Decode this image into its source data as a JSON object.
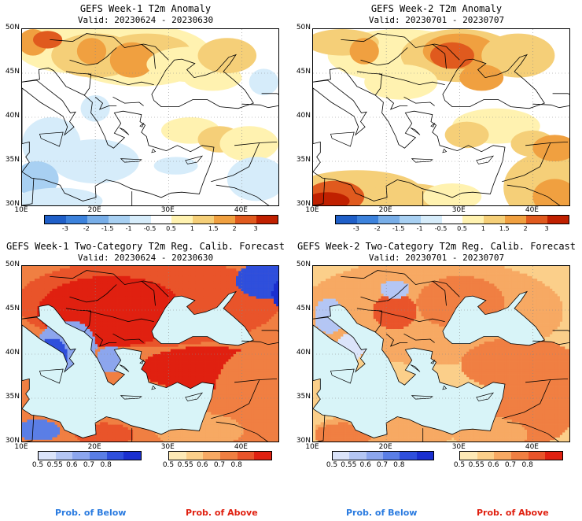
{
  "panels": [
    {
      "title": "GEFS Week-1 T2m Anomaly",
      "valid": "Valid: 20230624 - 20230630",
      "kind": "anomaly",
      "yticks": [
        "50N",
        "45N",
        "40N",
        "35N",
        "30N"
      ],
      "xticks": [
        "10E",
        "20E",
        "30E",
        "40E"
      ]
    },
    {
      "title": "GEFS Week-2 T2m Anomaly",
      "valid": "Valid: 20230701 - 20230707",
      "kind": "anomaly",
      "yticks": [
        "50N",
        "45N",
        "40N",
        "35N",
        "30N"
      ],
      "xticks": [
        "10E",
        "20E",
        "30E",
        "40E"
      ]
    },
    {
      "title": "GEFS Week-1 Two-Category T2m Reg. Calib. Forecast",
      "valid": "Valid: 20230624 - 20230630",
      "kind": "prob",
      "yticks": [
        "50N",
        "45N",
        "40N",
        "35N",
        "30N"
      ],
      "xticks": [
        "10E",
        "20E",
        "30E",
        "40E"
      ]
    },
    {
      "title": "GEFS Week-2 Two-Category T2m Reg. Calib. Forecast",
      "valid": "Valid: 20230701 - 20230707",
      "kind": "prob",
      "yticks": [
        "50N",
        "45N",
        "40N",
        "35N",
        "30N"
      ],
      "xticks": [
        "10E",
        "20E",
        "30E",
        "40E"
      ]
    }
  ],
  "anomaly_colorbar": {
    "labels": [
      "-3",
      "-2",
      "-1.5",
      "-1",
      "-0.5",
      "0.5",
      "1",
      "1.5",
      "2",
      "3"
    ],
    "colors": [
      "#1f5fc8",
      "#3c82dc",
      "#78aee8",
      "#a8d0f2",
      "#d6ecfa",
      "#ffffff",
      "#fff2b0",
      "#f5cf78",
      "#f0a040",
      "#e05a1e",
      "#c02000"
    ]
  },
  "prob_colorbar": {
    "below_labels": [
      "0.5",
      "0.55",
      "0.6",
      "0.7",
      "0.8"
    ],
    "below_colors": [
      "#dbe4fa",
      "#b4c6f4",
      "#8ca6ee",
      "#5a7ee6",
      "#2f4fdc",
      "#1a2fd0"
    ],
    "above_labels": [
      "0.5",
      "0.55",
      "0.6",
      "0.7",
      "0.8"
    ],
    "above_colors": [
      "#fde9b6",
      "#fbcf8a",
      "#f7a963",
      "#f07f42",
      "#e9542a",
      "#e02010"
    ],
    "below_text": "Prob. of Below",
    "above_text": "Prob. of Above",
    "below_text_color": "#2a7be0",
    "above_text_color": "#e02010"
  },
  "chart_data": [
    {
      "type": "heatmap",
      "title": "GEFS Week-1 T2m Anomaly",
      "valid": "20230624 - 20230630",
      "x_range": [
        10,
        45
      ],
      "y_range": [
        30,
        50
      ],
      "x_unit": "E",
      "y_unit": "N",
      "summary": "Warm anomalies (+0.5 to +2) over central/eastern Europe, Balkans and Carpathians; near-zero over Mediterranean; weak cold (-0.5 to -1) over Libya, Greece, Anatolia patches."
    },
    {
      "type": "heatmap",
      "title": "GEFS Week-2 T2m Anomaly",
      "valid": "20230701 - 20230707",
      "x_range": [
        10,
        45
      ],
      "y_range": [
        30,
        50
      ],
      "x_unit": "E",
      "y_unit": "N",
      "summary": "Strong warm anomalies (+1.5 to +3) over Romania/Ukraine, Libya/Egypt and Middle East; moderate warmth over Balkans and Turkey."
    },
    {
      "type": "heatmap",
      "title": "GEFS Week-1 Two-Category T2m Reg. Calib. Forecast",
      "valid": "20230624 - 20230630",
      "x_range": [
        10,
        45
      ],
      "y_range": [
        30,
        50
      ],
      "x_unit": "E",
      "y_unit": "N",
      "summary": "Probability of above (>0.8) over central/eastern Europe, Balkans and Turkey; probability of below over Italy, NE Russia corner and coastal Libya."
    },
    {
      "type": "heatmap",
      "title": "GEFS Week-2 Two-Category T2m Reg. Calib. Forecast",
      "valid": "20230701 - 20230707",
      "x_range": [
        10,
        45
      ],
      "y_range": [
        30,
        50
      ],
      "x_unit": "E",
      "y_unit": "N",
      "summary": "Widespread probability of above (0.6-0.8) over land; small below areas near Italy and Hungary."
    }
  ]
}
